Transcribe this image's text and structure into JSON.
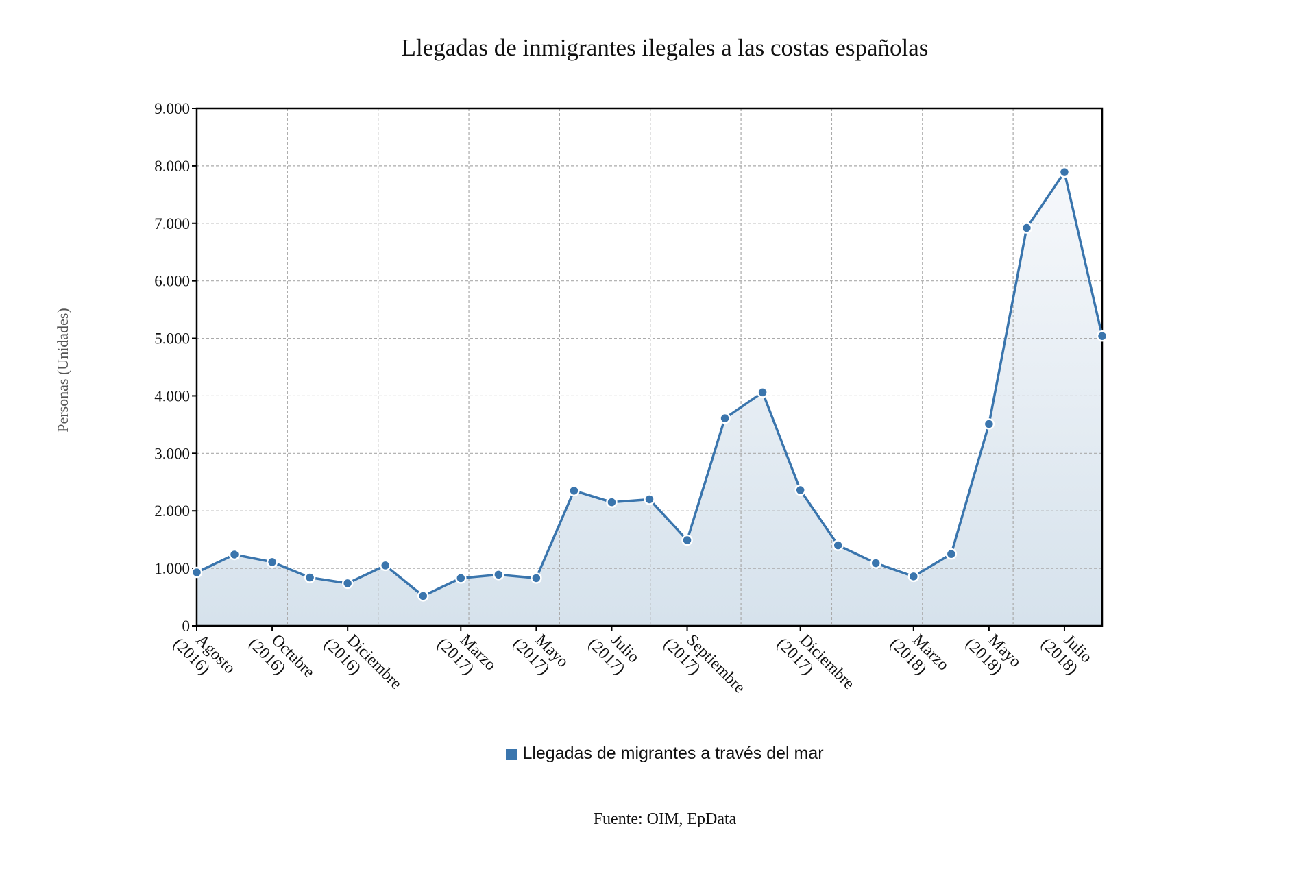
{
  "chart_data": {
    "type": "area",
    "title": "Llegadas de inmigrantes ilegales a las costas españolas",
    "ylabel": "Personas (Unidades)",
    "xlabel": "",
    "ylim": [
      0,
      9000
    ],
    "yticks": [
      "0",
      "1.000",
      "2.000",
      "3.000",
      "4.000",
      "5.000",
      "6.000",
      "7.000",
      "8.000",
      "9.000"
    ],
    "x": [
      "2016-08",
      "2016-09",
      "2016-10",
      "2016-11",
      "2016-12",
      "2017-01",
      "2017-02",
      "2017-03",
      "2017-04",
      "2017-05",
      "2017-06",
      "2017-07",
      "2017-08",
      "2017-09",
      "2017-10",
      "2017-11",
      "2017-12",
      "2018-01",
      "2018-02",
      "2018-03",
      "2018-04",
      "2018-05",
      "2018-06",
      "2018-07",
      "2018-08"
    ],
    "xticks": [
      {
        "index": 0,
        "month": "Agosto",
        "year": "(2016)"
      },
      {
        "index": 2,
        "month": "Octubre",
        "year": "(2016)"
      },
      {
        "index": 4,
        "month": "Diciembre",
        "year": "(2016)"
      },
      {
        "index": 7,
        "month": "Marzo",
        "year": "(2017)"
      },
      {
        "index": 9,
        "month": "Mayo",
        "year": "(2017)"
      },
      {
        "index": 11,
        "month": "Julio",
        "year": "(2017)"
      },
      {
        "index": 13,
        "month": "Septiembre",
        "year": "(2017)"
      },
      {
        "index": 16,
        "month": "Diciembre",
        "year": "(2017)"
      },
      {
        "index": 19,
        "month": "Marzo",
        "year": "(2018)"
      },
      {
        "index": 21,
        "month": "Mayo",
        "year": "(2018)"
      },
      {
        "index": 23,
        "month": "Julio",
        "year": "(2018)"
      }
    ],
    "series": [
      {
        "name": "Llegadas de migrantes a través del mar",
        "color": "#3a75ad",
        "values": [
          930,
          1240,
          1110,
          840,
          740,
          1050,
          520,
          830,
          890,
          830,
          2350,
          2150,
          2200,
          1490,
          3610,
          4060,
          2360,
          1400,
          1090,
          860,
          1250,
          3510,
          6920,
          7890,
          5040
        ]
      }
    ],
    "grid": true,
    "legend_position": "bottom",
    "source": "Fuente: OIM, EpData"
  }
}
